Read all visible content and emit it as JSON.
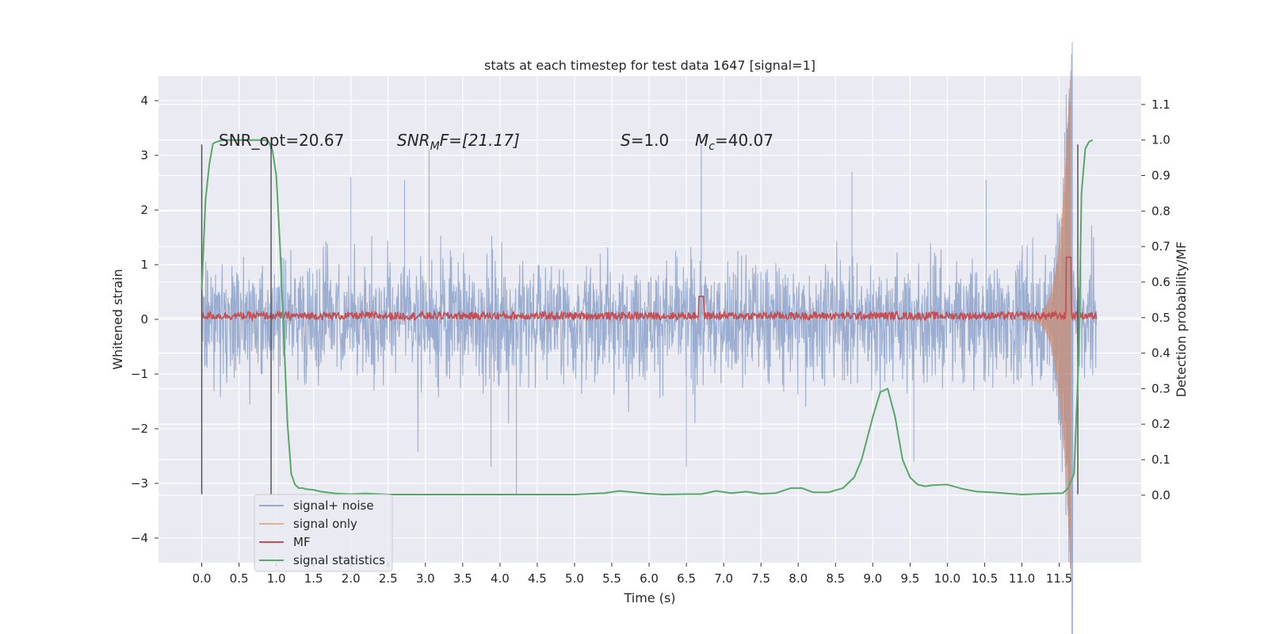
{
  "chart_data": {
    "type": "line",
    "title": "stats at each timestep for test data 1647 [signal=1]",
    "xlabel": "Time (s)",
    "ylabel": "Whitened strain",
    "y2label": "Detection probability/MF",
    "xlim": [
      -0.58,
      12.6
    ],
    "ylim": [
      -4.45,
      4.45
    ],
    "y2lim": [
      -0.19,
      1.18
    ],
    "grid": true,
    "xticks": [
      "0.0",
      "0.5",
      "1.0",
      "1.5",
      "2.0",
      "2.5",
      "3.0",
      "3.5",
      "4.0",
      "4.5",
      "5.0",
      "5.5",
      "6.0",
      "6.5",
      "7.0",
      "7.5",
      "8.0",
      "8.5",
      "9.0",
      "9.5",
      "10.0",
      "10.5",
      "11.0",
      "11.5"
    ],
    "yticks": [
      "4",
      "3",
      "2",
      "1",
      "0",
      "−1",
      "−2",
      "−3",
      "−4"
    ],
    "y2ticks": [
      "1.1",
      "1.0",
      "0.9",
      "0.8",
      "0.7",
      "0.6",
      "0.5",
      "0.4",
      "0.3",
      "0.2",
      "0.1",
      "0.0"
    ],
    "annotations": {
      "snr_opt": "SNR_opt=20.67",
      "snr_mf_name": "SNR",
      "snr_mf_sub": "M",
      "snr_mf_rest": "F=[21.17]",
      "s_name": "S",
      "s_rest": "=1.0",
      "mc_name": "M",
      "mc_sub": "c",
      "mc_rest": "=40.07"
    },
    "vlines_x": [
      0.0,
      0.93,
      11.75
    ],
    "vlines_y_range": [
      -3.2,
      3.2
    ],
    "legend_placement": "lower-left",
    "series": [
      {
        "name": "signal+ noise",
        "color": "#4c72b0",
        "generated_envelope": {
          "t_start": 0.0,
          "t_end": 12.0,
          "noise_peak": 2.2
        },
        "peaks": [
          [
            2.0,
            2.6
          ],
          [
            2.72,
            2.55
          ],
          [
            3.05,
            3.1
          ],
          [
            3.88,
            -2.7
          ],
          [
            4.22,
            -3.2
          ],
          [
            6.7,
            3.2
          ],
          [
            6.5,
            -2.7
          ],
          [
            8.72,
            2.7
          ],
          [
            9.55,
            -2.6
          ],
          [
            10.52,
            2.55
          ],
          [
            11.63,
            4.05
          ],
          [
            11.63,
            -4.1
          ]
        ]
      },
      {
        "name": "signal only",
        "color": "#dd8452",
        "chirp": {
          "t_start": 10.8,
          "t_peak": 11.63,
          "amp_peak": 3.9
        }
      },
      {
        "name": "MF",
        "color": "#c44e52",
        "axis": "right",
        "baseline": 0.505,
        "x": [
          0.0,
          6.7,
          11.5,
          11.63,
          11.7,
          12.0
        ],
        "y": [
          0.505,
          0.56,
          0.51,
          0.67,
          0.51,
          0.505
        ]
      },
      {
        "name": "signal statistics",
        "color": "#55a868",
        "axis": "right",
        "x": [
          0.0,
          0.05,
          0.1,
          0.15,
          0.2,
          0.3,
          0.5,
          0.7,
          0.85,
          0.9,
          0.95,
          1.0,
          1.05,
          1.1,
          1.15,
          1.2,
          1.25,
          1.3,
          1.35,
          1.4,
          1.5,
          1.6,
          1.8,
          2.0,
          2.2,
          2.5,
          3.0,
          4.0,
          5.0,
          5.4,
          5.6,
          5.8,
          6.0,
          6.2,
          6.5,
          6.7,
          6.9,
          7.1,
          7.3,
          7.5,
          7.7,
          7.9,
          8.05,
          8.2,
          8.4,
          8.6,
          8.75,
          8.85,
          9.0,
          9.1,
          9.2,
          9.3,
          9.4,
          9.5,
          9.6,
          9.7,
          9.8,
          10.0,
          10.2,
          10.4,
          10.6,
          11.0,
          11.4,
          11.55,
          11.62,
          11.7,
          11.76,
          11.8,
          11.85,
          11.9,
          11.95
        ],
        "y": [
          0.58,
          0.83,
          0.93,
          0.99,
          0.995,
          1.0,
          1.0,
          1.0,
          1.0,
          0.995,
          0.97,
          0.9,
          0.7,
          0.45,
          0.2,
          0.06,
          0.03,
          0.02,
          0.02,
          0.017,
          0.015,
          0.01,
          0.005,
          0.003,
          0.005,
          0.002,
          0.002,
          0.002,
          0.002,
          0.006,
          0.012,
          0.008,
          0.004,
          0.002,
          0.003,
          0.003,
          0.012,
          0.006,
          0.01,
          0.004,
          0.006,
          0.02,
          0.02,
          0.008,
          0.008,
          0.02,
          0.05,
          0.1,
          0.22,
          0.29,
          0.3,
          0.22,
          0.1,
          0.05,
          0.03,
          0.025,
          0.028,
          0.03,
          0.018,
          0.01,
          0.008,
          0.002,
          0.005,
          0.006,
          0.02,
          0.06,
          0.38,
          0.85,
          0.975,
          0.995,
          1.0
        ]
      }
    ]
  }
}
